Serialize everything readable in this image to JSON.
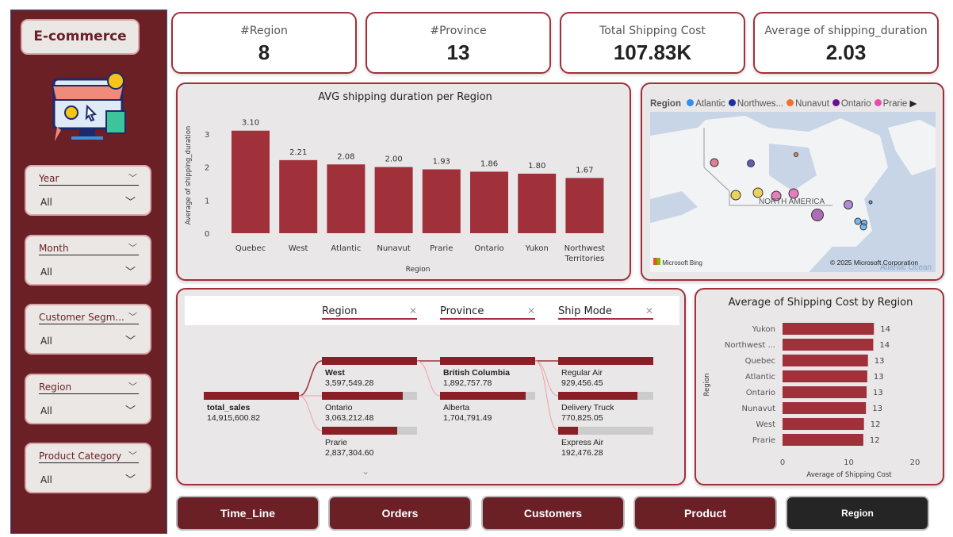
{
  "app": {
    "title": "E-commerce",
    "accent": "#6b2026",
    "bar_color": "#a0303a"
  },
  "slicers": [
    {
      "label": "Year",
      "value": "All"
    },
    {
      "label": "Month",
      "value": "All"
    },
    {
      "label": "Customer Segm...",
      "value": "All"
    },
    {
      "label": "Region",
      "value": "All"
    },
    {
      "label": "Product Category",
      "value": "All"
    }
  ],
  "kpis": [
    {
      "title": "#Region",
      "value": "8"
    },
    {
      "title": "#Province",
      "value": "13"
    },
    {
      "title": "Total Shipping Cost",
      "value": "107.83K"
    },
    {
      "title": "Average of shipping_duration",
      "value": "2.03"
    }
  ],
  "chart_data": [
    {
      "type": "bar",
      "title": "AVG shipping duration per Region",
      "xlabel": "Region",
      "ylabel": "Average of shipping_duration",
      "categories": [
        "Quebec",
        "West",
        "Atlantic",
        "Nunavut",
        "Prarie",
        "Ontario",
        "Yukon",
        "Northwest Territories"
      ],
      "values": [
        3.1,
        2.21,
        2.08,
        2.0,
        1.93,
        1.86,
        1.8,
        1.67
      ],
      "labels": [
        "3.10",
        "2.21",
        "2.08",
        "2.00",
        "1.93",
        "1.86",
        "1.80",
        "1.67"
      ],
      "yticks": [
        "0",
        "1",
        "2",
        "3"
      ],
      "ylim": [
        0,
        3.3
      ]
    },
    {
      "type": "bar",
      "orientation": "horizontal",
      "title": "Average of Shipping Cost by Region",
      "xlabel": "Average of Shipping Cost",
      "ylabel": "Region",
      "categories": [
        "Yukon",
        "Northwest ...",
        "Quebec",
        "Atlantic",
        "Ontario",
        "Nunavut",
        "West",
        "Prarie"
      ],
      "values": [
        13.8,
        13.7,
        12.9,
        12.8,
        12.7,
        12.6,
        12.3,
        12.2
      ],
      "labels": [
        "14",
        "14",
        "13",
        "13",
        "13",
        "13",
        "12",
        "12"
      ],
      "xticks": [
        "0",
        "10",
        "20"
      ],
      "xlim": [
        0,
        20
      ]
    }
  ],
  "map": {
    "legend_title": "Region",
    "legend": [
      {
        "name": "Atlantic",
        "color": "#2f8ff0"
      },
      {
        "name": "Northwes...",
        "color": "#1a2fa0"
      },
      {
        "name": "Nunavut",
        "color": "#f07030"
      },
      {
        "name": "Ontario",
        "color": "#6a0f8f"
      },
      {
        "name": "Prarie",
        "color": "#e84bb0"
      }
    ],
    "label": "NORTH AMERICA",
    "ocean": "Atlantic Ocean",
    "bing": "Microsoft Bing",
    "copyright": "© 2025 Microsoft Corporation"
  },
  "decomp": {
    "headers": [
      "Region",
      "Province",
      "Ship Mode"
    ],
    "root": {
      "name": "total_sales",
      "value": "14,915,600.82"
    },
    "levels": [
      [
        {
          "name": "West",
          "value": "3,597,549.28",
          "pct": 100
        },
        {
          "name": "Ontario",
          "value": "3,063,212.48",
          "pct": 85
        },
        {
          "name": "Prarie",
          "value": "2,837,304.60",
          "pct": 79
        }
      ],
      [
        {
          "name": "British Columbia",
          "value": "1,892,757.78",
          "pct": 100
        },
        {
          "name": "Alberta",
          "value": "1,704,791.49",
          "pct": 90
        }
      ],
      [
        {
          "name": "Regular Air",
          "value": "929,456.45",
          "pct": 100
        },
        {
          "name": "Delivery Truck",
          "value": "770,825.05",
          "pct": 83
        },
        {
          "name": "Express Air",
          "value": "192,476.28",
          "pct": 21
        }
      ]
    ]
  },
  "nav": [
    "Time_Line",
    "Orders",
    "Customers",
    "Product",
    "Region"
  ]
}
